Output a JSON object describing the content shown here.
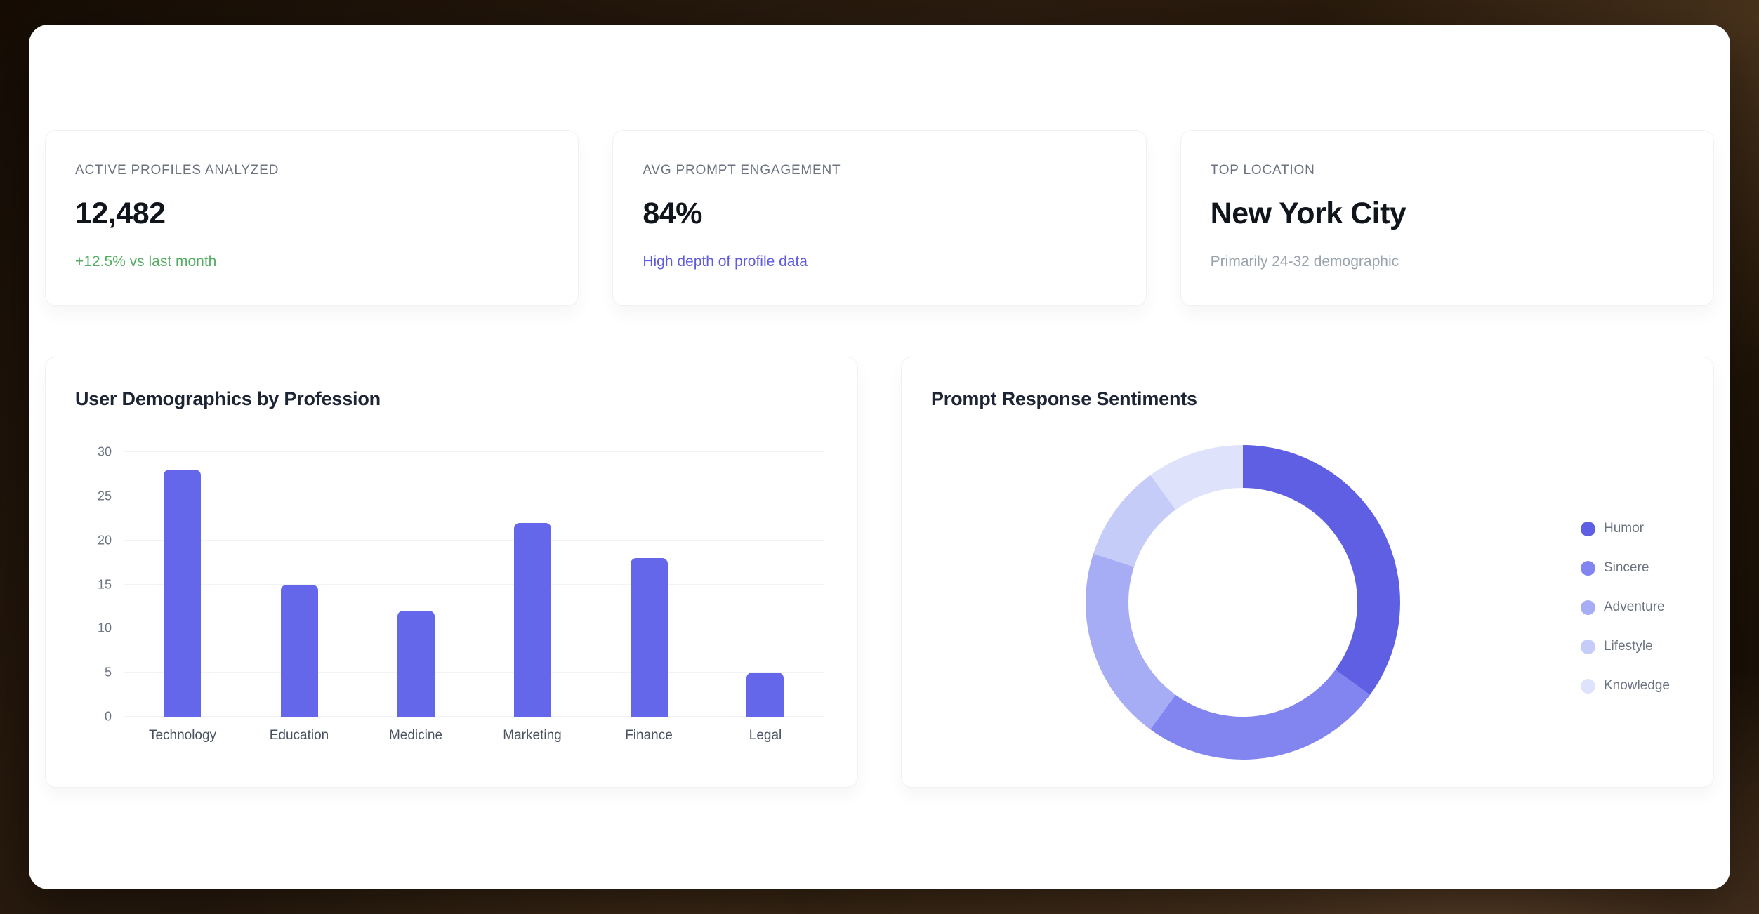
{
  "stats": [
    {
      "label": "ACTIVE PROFILES ANALYZED",
      "value": "12,482",
      "sub": "+12.5% vs last month",
      "sub_color": "#55ad63"
    },
    {
      "label": "AVG PROMPT ENGAGEMENT",
      "value": "84%",
      "sub": "High depth of profile data",
      "sub_color": "#5f5be0"
    },
    {
      "label": "TOP LOCATION",
      "value": "New York City",
      "sub": "Primarily 24-32 demographic",
      "sub_color": "#9aa3ad"
    }
  ],
  "chart_data": [
    {
      "type": "bar",
      "title": "User Demographics by Profession",
      "categories": [
        "Technology",
        "Education",
        "Medicine",
        "Marketing",
        "Finance",
        "Legal"
      ],
      "values": [
        28,
        15,
        12,
        22,
        18,
        5
      ],
      "xlabel": "",
      "ylabel": "",
      "ylim": [
        0,
        30
      ],
      "yticks": [
        0,
        5,
        10,
        15,
        20,
        25,
        30
      ],
      "bar_color": "#6567ea",
      "grid": true,
      "legend_position": "none"
    },
    {
      "type": "pie",
      "donut": true,
      "title": "Prompt Response Sentiments",
      "labels": [
        "Humor",
        "Sincere",
        "Adventure",
        "Lifestyle",
        "Knowledge"
      ],
      "values": [
        35,
        25,
        20,
        10,
        10
      ],
      "colors": [
        "#5e5fe2",
        "#8285ef",
        "#a7adf4",
        "#c6ccf8",
        "#dfe2fb"
      ],
      "legend_position": "right",
      "start_angle_deg": 0
    }
  ]
}
